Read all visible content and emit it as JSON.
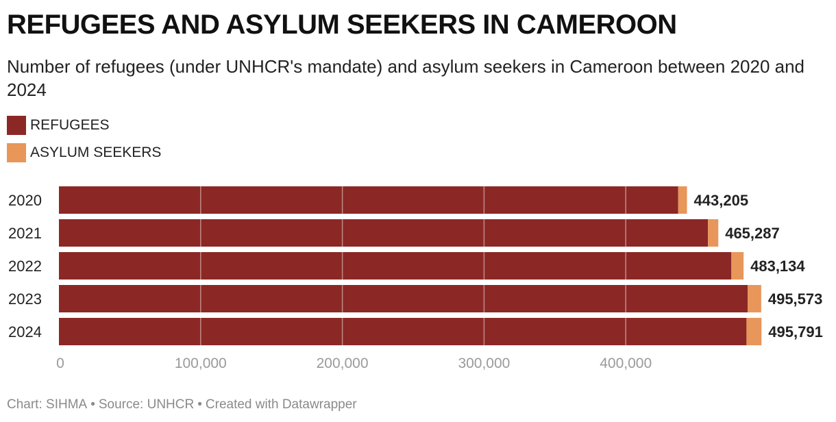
{
  "title": "REFUGEES AND ASYLUM SEEKERS IN CAMEROON",
  "subtitle": "Number of refugees (under UNHCR's mandate) and asylum seekers in Cameroon between 2020 and 2024",
  "legend": [
    {
      "label": "REFUGEES",
      "color": "#8b2826"
    },
    {
      "label": "ASYLUM SEEKERS",
      "color": "#e8965a"
    }
  ],
  "footer": {
    "chart": "Chart: SIHMA",
    "source": "Source: UNHCR",
    "created": "Created with Datawrapper",
    "separator": "•"
  },
  "chart_data": {
    "type": "bar",
    "orientation": "horizontal",
    "stacked": true,
    "categories": [
      "2020",
      "2021",
      "2022",
      "2023",
      "2024"
    ],
    "series": [
      {
        "name": "REFUGEES",
        "color": "#8b2826",
        "values": [
          437000,
          458000,
          474500,
          486000,
          485200
        ]
      },
      {
        "name": "ASYLUM SEEKERS",
        "color": "#e8965a",
        "values": [
          6205,
          7287,
          8634,
          9573,
          10591
        ]
      }
    ],
    "totals": [
      443205,
      465287,
      483134,
      495573,
      495791
    ],
    "total_labels": [
      "443,205",
      "465,287",
      "483,134",
      "495,573",
      "495,791"
    ],
    "x_ticks": [
      0,
      100000,
      200000,
      300000,
      400000
    ],
    "x_tick_labels": [
      "0",
      "100,000",
      "200,000",
      "300,000",
      "400,000"
    ],
    "xlim": [
      0,
      500000
    ],
    "grid": true,
    "legend_position": "top-left"
  }
}
